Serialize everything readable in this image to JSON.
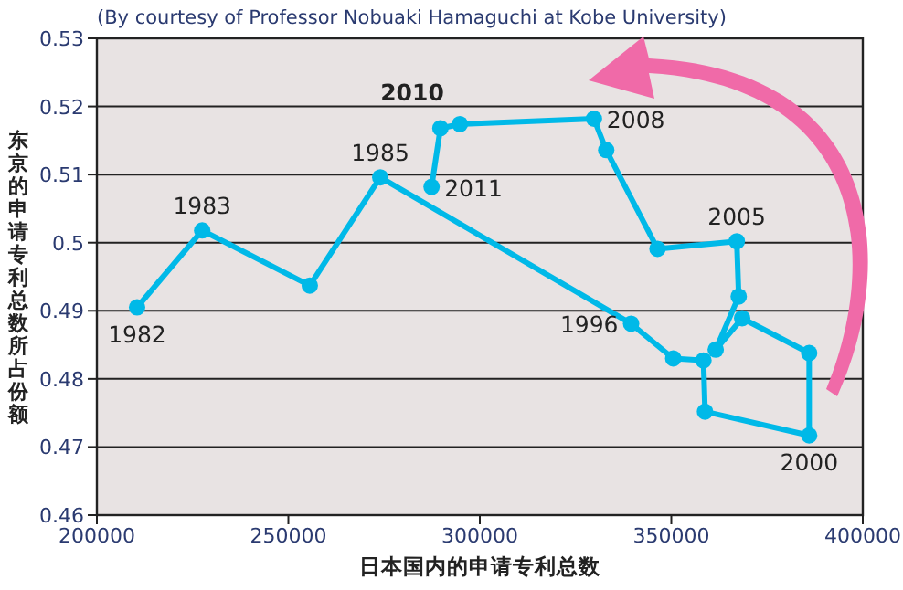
{
  "chart_data": {
    "type": "line",
    "xlabel": "日本国内的申请专利总数",
    "ylabel": "东京的申请专利总数所占份额",
    "color": "#00b9e8",
    "marker": "circle",
    "grid": "y",
    "xlim": [
      200000,
      400000
    ],
    "xticks": [
      200000,
      250000,
      300000,
      350000,
      400000
    ],
    "ylim": [
      0.46,
      0.53
    ],
    "yticks": [
      0.46,
      0.47,
      0.48,
      0.49,
      0.5,
      0.51,
      0.52,
      0.53
    ],
    "x": [
      210500,
      227500,
      255600,
      274000,
      339500,
      350500,
      358400,
      358800,
      386000,
      386000,
      368500,
      361600,
      367600,
      367100,
      346400,
      333000,
      329800,
      294800,
      289700,
      287400
    ],
    "values": [
      0.4905,
      0.5018,
      0.4937,
      0.5096,
      0.4881,
      0.483,
      0.4827,
      0.4752,
      0.4717,
      0.4838,
      0.4889,
      0.4843,
      0.4921,
      0.5002,
      0.4991,
      0.5136,
      0.5182,
      0.5174,
      0.5168,
      0.5082
    ],
    "annotations": [
      "(By courtesy of Professor Nobuaki Hamaguchi at Kobe University)",
      {
        "text": "1982",
        "x": 210500,
        "y": 0.4905
      },
      {
        "text": "1983",
        "x": 227500,
        "y": 0.5018
      },
      {
        "text": "1985",
        "x": 274000,
        "y": 0.5096
      },
      {
        "text": "2010",
        "x": 289700,
        "y": 0.5168
      },
      {
        "text": "2011",
        "x": 287400,
        "y": 0.5082
      },
      {
        "text": "2008",
        "x": 329800,
        "y": 0.5182
      },
      {
        "text": "2005",
        "x": 367100,
        "y": 0.5002
      },
      {
        "text": "1996",
        "x": 339500,
        "y": 0.4881
      },
      {
        "text": "2000",
        "x": 386000,
        "y": 0.4717
      }
    ]
  }
}
